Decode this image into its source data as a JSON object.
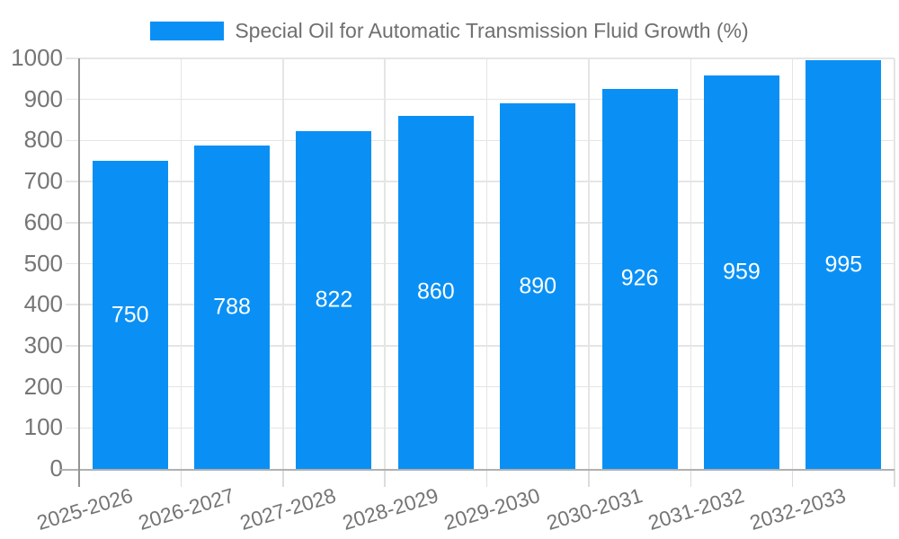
{
  "chart_data": {
    "type": "bar",
    "title": "Special Oil for Automatic Transmission Fluid Growth (%)",
    "categories": [
      "2025-2026",
      "2026-2027",
      "2027-2028",
      "2028-2029",
      "2029-2030",
      "2030-2031",
      "2031-2032",
      "2032-2033"
    ],
    "values": [
      750,
      788,
      822,
      860,
      890,
      926,
      959,
      995
    ],
    "bar_value_labels": [
      "750",
      "788",
      "822",
      "860",
      "890",
      "926",
      "959",
      "995"
    ],
    "xlabel": "",
    "ylabel": "",
    "ylim": [
      0,
      1000
    ],
    "yticks": [
      0,
      100,
      200,
      300,
      400,
      500,
      600,
      700,
      800,
      900,
      1000
    ],
    "grid": true,
    "legend_position": "top-center",
    "legend_swatch": "filled-rect",
    "colors": {
      "bar": "#0a90f5",
      "bar_label_text": "#ffffff",
      "axis_text": "#757575",
      "title_text": "#6f6f6f",
      "grid_line": "#e5e5e5",
      "x_axis_line": "#b0b0b0",
      "y_axis_line": "#949494",
      "tick_line": "#dcdcdc",
      "background": "#ffffff"
    }
  }
}
